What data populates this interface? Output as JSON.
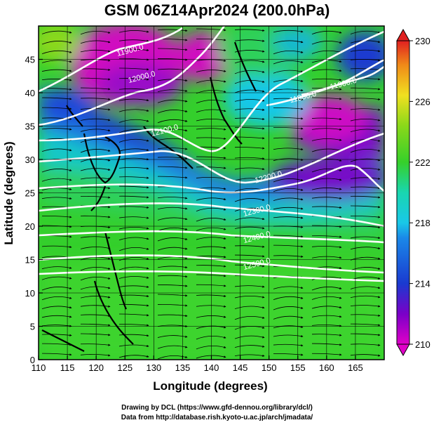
{
  "title": "GSM 06Z14Apr2024 (200.0hPa)",
  "x_axis": {
    "label": "Longitude (degrees)",
    "min": 110,
    "max": 170,
    "ticks": [
      110,
      115,
      120,
      125,
      130,
      135,
      140,
      145,
      150,
      155,
      160,
      165
    ]
  },
  "y_axis": {
    "label": "Latitude  (degrees)",
    "min": 0,
    "max": 50,
    "ticks": [
      0,
      5,
      10,
      15,
      20,
      25,
      30,
      35,
      40,
      45
    ]
  },
  "colorbar": {
    "ticks": [
      210,
      214,
      218,
      222,
      226,
      230
    ],
    "min": 210,
    "max": 230
  },
  "contour_labels": [
    {
      "text": "11900.0",
      "lon": 126,
      "lat": 46
    },
    {
      "text": "12000.0",
      "lon": 128,
      "lat": 42
    },
    {
      "text": "12100.0",
      "lon": 132,
      "lat": 34
    },
    {
      "text": "11900.0",
      "lon": 163,
      "lat": 41
    },
    {
      "text": "11800.0",
      "lon": 156,
      "lat": 39
    },
    {
      "text": "12200.0",
      "lon": 150,
      "lat": 27
    },
    {
      "text": "12300.0",
      "lon": 148,
      "lat": 22
    },
    {
      "text": "12400.0",
      "lon": 148,
      "lat": 18
    },
    {
      "text": "12500.0",
      "lon": 148,
      "lat": 14
    }
  ],
  "credits": {
    "line1": "Drawing by DCL (https://www.gfd-dennou.org/library/dcl/)",
    "line2": "Data from http://database.rish.kyoto-u.ac.jp/arch/jmadata/"
  },
  "colors": {
    "magenta": "#e000c8",
    "purple": "#7a00c8",
    "blue": "#1a3ad0",
    "cyan": "#19c8e8",
    "teal": "#19d6b0",
    "green": "#36d02a",
    "lime": "#8ad81a",
    "yellow": "#f0e020",
    "orange": "#f08a18",
    "red": "#e02020"
  }
}
